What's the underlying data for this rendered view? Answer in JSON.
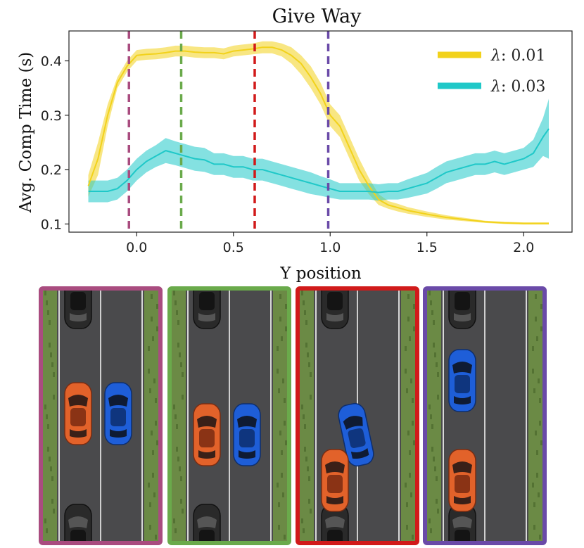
{
  "chart_data": {
    "type": "line",
    "title": "Give Way",
    "xlabel": "Y position",
    "ylabel": "Avg. Comp Time (s)",
    "xlim": [
      -0.35,
      2.25
    ],
    "ylim": [
      0.085,
      0.455
    ],
    "xticks": [
      {
        "value": 0.0,
        "label": "0.0"
      },
      {
        "value": 0.5,
        "label": "0.5"
      },
      {
        "value": 1.0,
        "label": "1.0"
      },
      {
        "value": 1.5,
        "label": "1.5"
      },
      {
        "value": 2.0,
        "label": "2.0"
      }
    ],
    "yticks": [
      {
        "value": 0.1,
        "label": "0.1"
      },
      {
        "value": 0.2,
        "label": "0.2"
      },
      {
        "value": 0.3,
        "label": "0.3"
      },
      {
        "value": 0.4,
        "label": "0.4"
      }
    ],
    "legend_position": "top-right",
    "series": [
      {
        "name": "λ: 0.01",
        "legend_prefix": "λ",
        "legend_value": ": 0.01",
        "color": "#f2d21b",
        "x": [
          -0.25,
          -0.2,
          -0.15,
          -0.1,
          -0.05,
          0.0,
          0.05,
          0.1,
          0.15,
          0.2,
          0.25,
          0.3,
          0.35,
          0.4,
          0.45,
          0.5,
          0.55,
          0.6,
          0.65,
          0.7,
          0.75,
          0.8,
          0.85,
          0.9,
          0.95,
          1.0,
          1.05,
          1.1,
          1.15,
          1.2,
          1.25,
          1.3,
          1.35,
          1.4,
          1.5,
          1.6,
          1.7,
          1.8,
          1.9,
          2.0,
          2.1,
          2.13
        ],
        "mean": [
          0.17,
          0.22,
          0.3,
          0.36,
          0.39,
          0.41,
          0.412,
          0.413,
          0.415,
          0.418,
          0.418,
          0.416,
          0.415,
          0.415,
          0.413,
          0.418,
          0.42,
          0.422,
          0.425,
          0.425,
          0.42,
          0.41,
          0.395,
          0.37,
          0.34,
          0.3,
          0.28,
          0.24,
          0.2,
          0.17,
          0.145,
          0.135,
          0.13,
          0.125,
          0.118,
          0.112,
          0.108,
          0.104,
          0.102,
          0.101,
          0.101,
          0.101
        ],
        "lower": [
          0.15,
          0.19,
          0.28,
          0.35,
          0.38,
          0.4,
          0.402,
          0.403,
          0.405,
          0.408,
          0.408,
          0.406,
          0.405,
          0.405,
          0.403,
          0.408,
          0.41,
          0.412,
          0.414,
          0.414,
          0.408,
          0.395,
          0.375,
          0.35,
          0.32,
          0.28,
          0.26,
          0.22,
          0.18,
          0.155,
          0.135,
          0.128,
          0.123,
          0.119,
          0.113,
          0.108,
          0.105,
          0.102,
          0.1,
          0.099,
          0.099,
          0.099
        ],
        "upper": [
          0.19,
          0.25,
          0.32,
          0.37,
          0.4,
          0.42,
          0.422,
          0.423,
          0.425,
          0.428,
          0.428,
          0.426,
          0.425,
          0.425,
          0.423,
          0.428,
          0.43,
          0.432,
          0.436,
          0.436,
          0.432,
          0.425,
          0.41,
          0.39,
          0.36,
          0.32,
          0.3,
          0.26,
          0.22,
          0.185,
          0.155,
          0.142,
          0.137,
          0.131,
          0.123,
          0.116,
          0.111,
          0.106,
          0.104,
          0.103,
          0.103,
          0.103
        ]
      },
      {
        "name": "λ: 0.03",
        "legend_prefix": "λ",
        "legend_value": ": 0.03",
        "color": "#1fc8c8",
        "x": [
          -0.25,
          -0.2,
          -0.15,
          -0.1,
          -0.05,
          0.0,
          0.05,
          0.1,
          0.15,
          0.2,
          0.25,
          0.3,
          0.35,
          0.4,
          0.45,
          0.5,
          0.55,
          0.6,
          0.65,
          0.7,
          0.75,
          0.8,
          0.85,
          0.9,
          0.95,
          1.0,
          1.05,
          1.1,
          1.15,
          1.2,
          1.25,
          1.3,
          1.35,
          1.4,
          1.45,
          1.5,
          1.55,
          1.6,
          1.65,
          1.7,
          1.75,
          1.8,
          1.85,
          1.9,
          1.95,
          2.0,
          2.05,
          2.1,
          2.13
        ],
        "mean": [
          0.16,
          0.16,
          0.16,
          0.165,
          0.18,
          0.2,
          0.215,
          0.225,
          0.235,
          0.23,
          0.225,
          0.22,
          0.218,
          0.21,
          0.21,
          0.205,
          0.205,
          0.2,
          0.2,
          0.195,
          0.19,
          0.185,
          0.18,
          0.175,
          0.17,
          0.165,
          0.16,
          0.16,
          0.16,
          0.16,
          0.158,
          0.16,
          0.16,
          0.165,
          0.17,
          0.175,
          0.185,
          0.195,
          0.2,
          0.205,
          0.21,
          0.21,
          0.215,
          0.21,
          0.215,
          0.22,
          0.23,
          0.26,
          0.275
        ],
        "lower": [
          0.14,
          0.14,
          0.14,
          0.145,
          0.16,
          0.18,
          0.195,
          0.205,
          0.212,
          0.208,
          0.203,
          0.198,
          0.196,
          0.19,
          0.19,
          0.185,
          0.185,
          0.18,
          0.18,
          0.175,
          0.17,
          0.165,
          0.16,
          0.155,
          0.152,
          0.148,
          0.145,
          0.145,
          0.145,
          0.145,
          0.143,
          0.145,
          0.145,
          0.148,
          0.152,
          0.156,
          0.165,
          0.175,
          0.18,
          0.185,
          0.19,
          0.19,
          0.195,
          0.19,
          0.195,
          0.2,
          0.205,
          0.225,
          0.22
        ],
        "upper": [
          0.18,
          0.18,
          0.18,
          0.185,
          0.2,
          0.22,
          0.235,
          0.245,
          0.258,
          0.252,
          0.247,
          0.242,
          0.24,
          0.23,
          0.23,
          0.225,
          0.225,
          0.22,
          0.22,
          0.215,
          0.21,
          0.205,
          0.2,
          0.195,
          0.188,
          0.182,
          0.175,
          0.175,
          0.175,
          0.175,
          0.173,
          0.175,
          0.175,
          0.182,
          0.188,
          0.194,
          0.205,
          0.215,
          0.22,
          0.225,
          0.23,
          0.23,
          0.235,
          0.23,
          0.235,
          0.24,
          0.255,
          0.295,
          0.33
        ]
      }
    ],
    "vlines": [
      {
        "x": -0.04,
        "color": "#a94c7f"
      },
      {
        "x": 0.23,
        "color": "#6aaa4b"
      },
      {
        "x": 0.61,
        "color": "#d11a1a"
      },
      {
        "x": 0.99,
        "color": "#6a4aa8"
      }
    ]
  },
  "panels": [
    {
      "color": "#a94c7f",
      "cars": [
        {
          "kind": "parked",
          "lane": "left",
          "pos": "top"
        },
        {
          "kind": "parked",
          "lane": "left",
          "pos": "bottom"
        },
        {
          "kind": "orange",
          "lane": "left",
          "pos": "upper-middle"
        },
        {
          "kind": "blue",
          "lane": "right",
          "pos": "upper-middle"
        }
      ]
    },
    {
      "color": "#6aaa4b",
      "cars": [
        {
          "kind": "parked",
          "lane": "left",
          "pos": "top"
        },
        {
          "kind": "parked",
          "lane": "left",
          "pos": "bottom"
        },
        {
          "kind": "orange",
          "lane": "left",
          "pos": "middle"
        },
        {
          "kind": "blue",
          "lane": "right",
          "pos": "middle"
        }
      ]
    },
    {
      "color": "#d11a1a",
      "cars": [
        {
          "kind": "parked",
          "lane": "left",
          "pos": "top"
        },
        {
          "kind": "parked",
          "lane": "left",
          "pos": "bottom"
        },
        {
          "kind": "blue",
          "lane": "center",
          "pos": "middle"
        },
        {
          "kind": "orange",
          "lane": "left",
          "pos": "lower"
        }
      ]
    },
    {
      "color": "#6a4aa8",
      "cars": [
        {
          "kind": "parked",
          "lane": "left",
          "pos": "top"
        },
        {
          "kind": "parked",
          "lane": "left",
          "pos": "bottom"
        },
        {
          "kind": "blue",
          "lane": "left",
          "pos": "upper"
        },
        {
          "kind": "orange",
          "lane": "left",
          "pos": "lower"
        }
      ]
    }
  ]
}
